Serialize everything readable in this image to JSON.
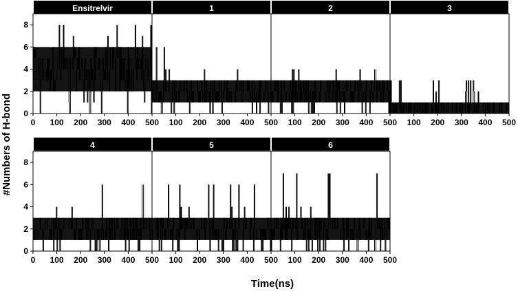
{
  "ylabel": "#Numbers of H-bond",
  "xlabel": "Time(ns)",
  "y_ticks": [
    0,
    2,
    4,
    6,
    8
  ],
  "x_ticks": [
    0,
    100,
    200,
    300,
    400,
    500
  ],
  "colors": {
    "strip": "#000000",
    "strip_text": "#ffffff",
    "trace": "#000000",
    "background": "#ffffff"
  },
  "chart_data": [
    {
      "type": "line",
      "title": "Ensitrelvir",
      "xlim": [
        0,
        500
      ],
      "ylim": [
        0,
        9
      ],
      "band": [
        2,
        6
      ],
      "typical": 4,
      "spikes_high": [
        7,
        8
      ],
      "spikes_low": [
        0,
        1
      ]
    },
    {
      "type": "line",
      "title": "1",
      "xlim": [
        0,
        500
      ],
      "ylim": [
        0,
        9
      ],
      "band": [
        1,
        3
      ],
      "typical": 2,
      "spikes_high": [
        4,
        6
      ],
      "spikes_low": [
        0
      ]
    },
    {
      "type": "line",
      "title": "2",
      "xlim": [
        0,
        500
      ],
      "ylim": [
        0,
        9
      ],
      "band": [
        1,
        3
      ],
      "typical": 2,
      "spikes_high": [
        3,
        4
      ],
      "spikes_low": [
        0
      ]
    },
    {
      "type": "line",
      "title": "3",
      "xlim": [
        0,
        500
      ],
      "ylim": [
        0,
        9
      ],
      "band": [
        0,
        1
      ],
      "typical": 1,
      "spikes_high": [
        2,
        3
      ],
      "spikes_low": [
        0
      ]
    },
    {
      "type": "line",
      "title": "4",
      "xlim": [
        0,
        500
      ],
      "ylim": [
        0,
        9
      ],
      "band": [
        1,
        3
      ],
      "typical": 2,
      "spikes_high": [
        4,
        6
      ],
      "spikes_low": [
        0
      ]
    },
    {
      "type": "line",
      "title": "5",
      "xlim": [
        0,
        500
      ],
      "ylim": [
        0,
        9
      ],
      "band": [
        1,
        3
      ],
      "typical": 2,
      "spikes_high": [
        4,
        6
      ],
      "spikes_low": [
        0
      ]
    },
    {
      "type": "line",
      "title": "6",
      "xlim": [
        0,
        500
      ],
      "ylim": [
        0,
        9
      ],
      "band": [
        1,
        3
      ],
      "typical": 2,
      "spikes_high": [
        4,
        7
      ],
      "spikes_low": [
        0
      ]
    }
  ]
}
